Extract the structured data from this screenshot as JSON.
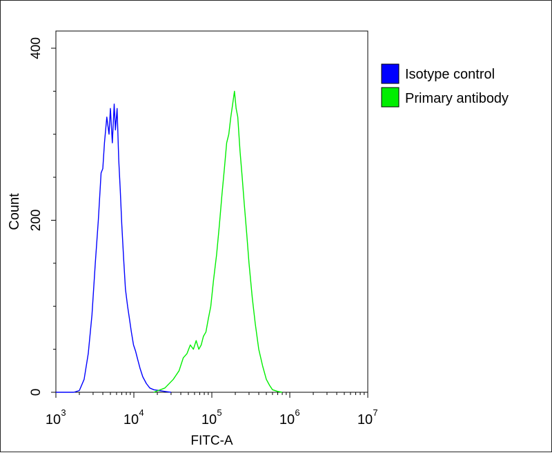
{
  "chart_data": {
    "type": "line",
    "title": "",
    "xlabel": "FITC-A",
    "ylabel": "Count",
    "x_scale": "log",
    "xlim": [
      1000,
      10000000
    ],
    "ylim": [
      0,
      420
    ],
    "x_ticks": [
      {
        "base": "10",
        "exp": "3",
        "value": 1000
      },
      {
        "base": "10",
        "exp": "4",
        "value": 10000
      },
      {
        "base": "10",
        "exp": "5",
        "value": 100000
      },
      {
        "base": "10",
        "exp": "6",
        "value": 1000000
      },
      {
        "base": "10",
        "exp": "7",
        "value": 10000000
      }
    ],
    "y_ticks": [
      {
        "label": "0",
        "value": 0
      },
      {
        "label": "200",
        "value": 200
      },
      {
        "label": "400",
        "value": 400
      }
    ],
    "legend_position": "right",
    "series": [
      {
        "name": "Isotype control",
        "color": "#0000ff",
        "x": [
          1000,
          1300,
          1700,
          2000,
          2300,
          2600,
          2900,
          3200,
          3500,
          3800,
          4000,
          4200,
          4500,
          4800,
          5000,
          5300,
          5600,
          5800,
          6100,
          6400,
          6700,
          7000,
          7400,
          7800,
          8300,
          8800,
          9300,
          9900,
          10500,
          11200,
          12000,
          13000,
          14500,
          16000,
          18000,
          21000,
          25000,
          30000
        ],
        "y": [
          0,
          0,
          0,
          2,
          15,
          45,
          90,
          150,
          200,
          255,
          260,
          290,
          320,
          300,
          330,
          290,
          335,
          305,
          330,
          270,
          235,
          195,
          155,
          120,
          100,
          85,
          70,
          55,
          48,
          38,
          28,
          18,
          10,
          5,
          3,
          2,
          1,
          0
        ]
      },
      {
        "name": "Primary antibody",
        "color": "#00ee00",
        "x": [
          18000,
          25000,
          32000,
          38000,
          43000,
          48000,
          53000,
          58000,
          63000,
          68000,
          73000,
          78000,
          84000,
          90000,
          97000,
          105000,
          115000,
          125000,
          135000,
          145000,
          155000,
          165000,
          175000,
          185000,
          195000,
          205000,
          215000,
          230000,
          245000,
          260000,
          280000,
          300000,
          330000,
          360000,
          400000,
          450000,
          500000,
          550000,
          600000,
          700000,
          800000
        ],
        "y": [
          0,
          5,
          15,
          25,
          40,
          45,
          55,
          50,
          60,
          50,
          55,
          65,
          70,
          85,
          100,
          130,
          160,
          195,
          230,
          260,
          290,
          300,
          320,
          335,
          350,
          330,
          320,
          280,
          250,
          220,
          185,
          150,
          110,
          80,
          50,
          30,
          15,
          8,
          3,
          1,
          0
        ]
      }
    ]
  }
}
